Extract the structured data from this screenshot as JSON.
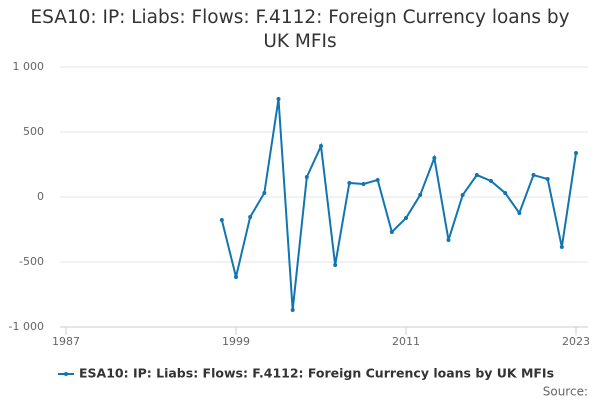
{
  "chart_data": {
    "type": "line",
    "title": "ESA10: IP: Liabs: Flows: F.4112: Foreign Currency loans by UK MFIs",
    "x": [
      1998,
      1999,
      2000,
      2001,
      2002,
      2003,
      2004,
      2005,
      2006,
      2007,
      2008,
      2009,
      2010,
      2011,
      2012,
      2013,
      2014,
      2015,
      2016,
      2017,
      2018,
      2019,
      2020,
      2021,
      2022,
      2023
    ],
    "series": [
      {
        "name": "ESA10: IP: Liabs: Flows: F.4112: Foreign Currency loans by UK MFIs",
        "color": "#1175b1",
        "values": [
          -177,
          -615,
          -154,
          31,
          754,
          -869,
          154,
          392,
          -523,
          108,
          100,
          131,
          -269,
          -162,
          15,
          300,
          -331,
          15,
          169,
          123,
          31,
          -123,
          169,
          138,
          -385,
          338
        ]
      }
    ],
    "xlim": [
      1987,
      2023
    ],
    "xticks": [
      1987,
      1999,
      2011,
      2023
    ],
    "ylim": [
      -1000,
      1000
    ],
    "yticks": [
      {
        "value": -1000,
        "label": "-1 000"
      },
      {
        "value": -500,
        "label": "-500"
      },
      0,
      500,
      {
        "value": 1000,
        "label": "1 000"
      }
    ],
    "grid": true,
    "source": "Source:"
  }
}
